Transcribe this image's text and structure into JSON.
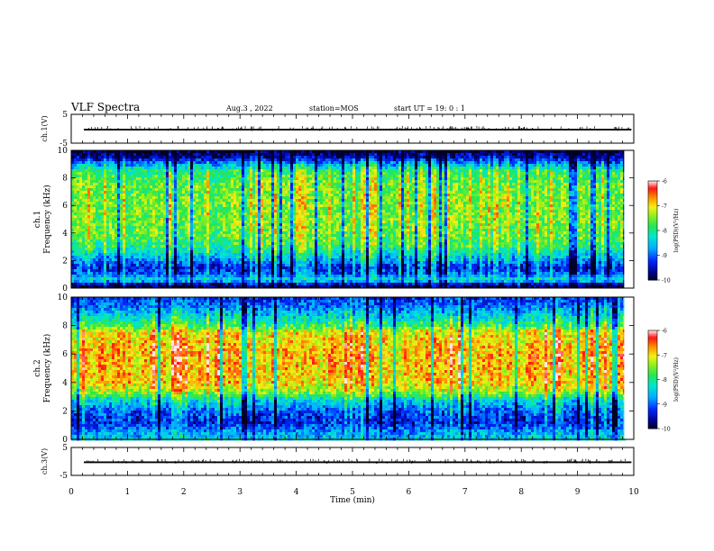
{
  "header": {
    "title": "VLF Spectra",
    "date": "Aug.3  , 2022",
    "station": "station=MOS",
    "start": "start  UT =   19: 0  : 1"
  },
  "colors": {
    "background": "#ffffff",
    "colormap": [
      "#000000",
      "#00008b",
      "#0000ff",
      "#00bfff",
      "#00ff7f",
      "#7cfc00",
      "#ffff00",
      "#ff8c00",
      "#ff0000",
      "#ffffff"
    ]
  },
  "chart_data": [
    {
      "id": "ch1-waveform",
      "type": "line",
      "ylabel": "ch.1(V)",
      "ylim": [
        -5,
        5
      ],
      "yticks": [
        "5",
        "-5"
      ],
      "xlim": [
        0,
        10
      ],
      "series": [
        {
          "values_description": "",
          "level": -0.3
        }
      ]
    },
    {
      "id": "ch1-spectrogram",
      "type": "heatmap",
      "ylabel": "ch.1\nFrequency (kHz)",
      "ylabel_lines": [
        "ch.1",
        "Frequency (kHz)"
      ],
      "ylim": [
        0,
        10
      ],
      "yticks": [
        "0",
        "2",
        "4",
        "6",
        "8",
        "10"
      ],
      "xlim": [
        0,
        10
      ],
      "data_end_min": 9.83,
      "colorbar": {
        "label": "log(PSD)(V²/Hz)",
        "range": [
          -10,
          -6
        ],
        "ticks": [
          "-6",
          "-7",
          "-8",
          "-9",
          "-10"
        ]
      },
      "profile_logpsd_by_khz": [
        [
          0.0,
          -10
        ],
        [
          0.3,
          -9.5
        ],
        [
          0.6,
          -8.2
        ],
        [
          1.0,
          -9.0
        ],
        [
          1.5,
          -9.3
        ],
        [
          2.2,
          -8.6
        ],
        [
          3.0,
          -7.9
        ],
        [
          4.0,
          -7.6
        ],
        [
          6.0,
          -7.5
        ],
        [
          7.5,
          -7.6
        ],
        [
          8.5,
          -7.9
        ],
        [
          9.0,
          -8.7
        ],
        [
          9.5,
          -9.6
        ],
        [
          10.0,
          -10
        ]
      ]
    },
    {
      "id": "ch2-spectrogram",
      "type": "heatmap",
      "ylabel": "ch.2\nFrequency (kHz)",
      "ylabel_lines": [
        "ch.2",
        "Frequency (kHz)"
      ],
      "ylim": [
        0,
        10
      ],
      "yticks": [
        "0",
        "2",
        "4",
        "6",
        "8",
        "10"
      ],
      "xlim": [
        0,
        10
      ],
      "data_end_min": 9.83,
      "colorbar": {
        "label": "log(PSD)(V²/Hz)",
        "range": [
          -10,
          -6
        ],
        "ticks": [
          "-6",
          "-7",
          "-8",
          "-9",
          "-10"
        ]
      },
      "profile_logpsd_by_khz": [
        [
          0.0,
          -8.4
        ],
        [
          0.5,
          -8.7
        ],
        [
          1.2,
          -9.3
        ],
        [
          2.0,
          -9.0
        ],
        [
          2.8,
          -8.3
        ],
        [
          3.3,
          -7.4
        ],
        [
          4.0,
          -6.9
        ],
        [
          6.0,
          -6.8
        ],
        [
          7.5,
          -7.0
        ],
        [
          8.0,
          -7.8
        ],
        [
          8.7,
          -8.4
        ],
        [
          9.3,
          -8.9
        ],
        [
          10.0,
          -9.2
        ]
      ]
    },
    {
      "id": "ch3-waveform",
      "type": "line",
      "ylabel": "ch.3(V)",
      "ylim": [
        -5,
        5
      ],
      "yticks": [
        "5",
        "-5"
      ],
      "xlim": [
        0,
        10
      ],
      "xlabel": "Time  (min)",
      "xticks": [
        "0",
        "1",
        "2",
        "3",
        "4",
        "5",
        "6",
        "7",
        "8",
        "9",
        "10"
      ],
      "series": [
        {
          "values_description": "",
          "level": -0.3
        }
      ]
    }
  ]
}
